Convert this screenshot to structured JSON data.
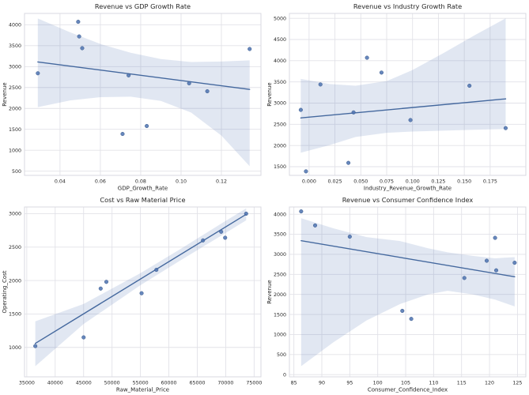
{
  "style": {
    "point_color": "#4c72b0",
    "point_edge_color": "#3a5a8c",
    "line_color": "#44689e",
    "band_color": "#4c72b0",
    "band_opacity": 0.17,
    "grid_color": "#e2e2e8",
    "spine_color": "#d9d9e0",
    "text_color": "#262626",
    "background": "#ffffff"
  },
  "chart_data": [
    {
      "id": "revenue-vs-gdp-growth",
      "type": "scatter",
      "title": "Revenue vs GDP Growth Rate",
      "xlabel": "GDP_Growth_Rate",
      "ylabel": "Revenue",
      "xlim": [
        0.0224,
        0.1396
      ],
      "ylim": [
        400,
        4270
      ],
      "xtick_values": [
        0.04,
        0.06,
        0.08,
        0.1,
        0.12
      ],
      "xtick_labels": [
        "0.04",
        "0.06",
        "0.08",
        "0.10",
        "0.12"
      ],
      "ytick_values": [
        500,
        1000,
        1500,
        2000,
        2500,
        3000,
        3500,
        4000
      ],
      "ytick_labels": [
        "500",
        "1000",
        "1500",
        "2000",
        "2500",
        "3000",
        "3500",
        "4000"
      ],
      "points": [
        [
          0.029,
          2840
        ],
        [
          0.049,
          4070
        ],
        [
          0.0495,
          3720
        ],
        [
          0.051,
          3440
        ],
        [
          0.071,
          1390
        ],
        [
          0.074,
          2790
        ],
        [
          0.083,
          1580
        ],
        [
          0.104,
          2600
        ],
        [
          0.113,
          2410
        ],
        [
          0.134,
          3420
        ]
      ],
      "regression_line": {
        "x": [
          0.029,
          0.134
        ],
        "y": [
          3110,
          2455
        ]
      },
      "confidence_band": {
        "x": [
          0.029,
          0.045,
          0.06,
          0.075,
          0.09,
          0.105,
          0.12,
          0.134
        ],
        "upper": [
          4150,
          3820,
          3540,
          3330,
          3180,
          3110,
          3120,
          3150
        ],
        "lower": [
          2030,
          2190,
          2270,
          2280,
          2180,
          1900,
          1350,
          620
        ]
      }
    },
    {
      "id": "revenue-vs-industry-growth",
      "type": "scatter",
      "title": "Revenue vs Industry Growth Rate",
      "xlabel": "Industry_Revenue_Growth_Rate",
      "ylabel": "Revenue",
      "xlim": [
        -0.019,
        0.2095
      ],
      "ylim": [
        1295,
        5115
      ],
      "xtick_values": [
        0.0,
        0.025,
        0.05,
        0.075,
        0.1,
        0.125,
        0.15,
        0.175
      ],
      "xtick_labels": [
        "0.000",
        "0.025",
        "0.050",
        "0.075",
        "0.100",
        "0.125",
        "0.150",
        "0.175"
      ],
      "ytick_values": [
        1500,
        2000,
        2500,
        3000,
        3500,
        4000,
        4500,
        5000
      ],
      "ytick_labels": [
        "1500",
        "2000",
        "2500",
        "3000",
        "3500",
        "4000",
        "4500",
        "5000"
      ],
      "points": [
        [
          -0.008,
          2840
        ],
        [
          -0.003,
          1390
        ],
        [
          0.011,
          3440
        ],
        [
          0.038,
          1590
        ],
        [
          0.043,
          2780
        ],
        [
          0.056,
          4070
        ],
        [
          0.07,
          3720
        ],
        [
          0.098,
          2600
        ],
        [
          0.155,
          3410
        ],
        [
          0.19,
          2410
        ]
      ],
      "regression_line": {
        "x": [
          -0.008,
          0.19
        ],
        "y": [
          2650,
          3100
        ]
      },
      "confidence_band": {
        "x": [
          -0.008,
          0.02,
          0.045,
          0.075,
          0.1,
          0.13,
          0.16,
          0.19
        ],
        "upper": [
          3570,
          3450,
          3410,
          3520,
          3780,
          4180,
          4600,
          5000
        ],
        "lower": [
          1830,
          2010,
          2200,
          2300,
          2330,
          2350,
          2370,
          2390
        ]
      }
    },
    {
      "id": "cost-vs-raw-material-price",
      "type": "scatter",
      "title": "Cost vs Raw Material Price",
      "xlabel": "Raw_Material_Price",
      "ylabel": "Operating_Cost",
      "xlim": [
        34600,
        76200
      ],
      "ylim": [
        560,
        3100
      ],
      "xtick_values": [
        35000,
        40000,
        45000,
        50000,
        55000,
        60000,
        65000,
        70000,
        75000
      ],
      "xtick_labels": [
        "35000",
        "40000",
        "45000",
        "50000",
        "55000",
        "60000",
        "65000",
        "70000",
        "75000"
      ],
      "ytick_values": [
        1000,
        1500,
        2000,
        2500,
        3000
      ],
      "ytick_labels": [
        "1000",
        "1500",
        "2000",
        "2500",
        "3000"
      ],
      "points": [
        [
          36500,
          1020
        ],
        [
          45000,
          1150
        ],
        [
          48000,
          1880
        ],
        [
          49000,
          1980
        ],
        [
          55200,
          1810
        ],
        [
          57800,
          2160
        ],
        [
          66000,
          2600
        ],
        [
          69200,
          2730
        ],
        [
          69900,
          2640
        ],
        [
          73600,
          3000
        ]
      ],
      "regression_line": {
        "x": [
          36500,
          73600
        ],
        "y": [
          1060,
          2990
        ]
      },
      "confidence_band": {
        "x": [
          36500,
          45000,
          55000,
          62000,
          69000,
          73600
        ],
        "upper": [
          1390,
          1650,
          2110,
          2470,
          2840,
          3080
        ],
        "lower": [
          720,
          1350,
          1930,
          2300,
          2660,
          2900
        ]
      }
    },
    {
      "id": "revenue-vs-consumer-confidence",
      "type": "scatter",
      "title": "Revenue vs Consumer Confidence Index",
      "xlabel": "Consumer_Confidence_Index",
      "ylabel": "Revenue",
      "xlim": [
        84.2,
        126.5
      ],
      "ylim": [
        -55,
        4180
      ],
      "xtick_values": [
        85,
        90,
        95,
        100,
        105,
        110,
        115,
        120,
        125
      ],
      "xtick_labels": [
        "85",
        "90",
        "95",
        "100",
        "105",
        "110",
        "115",
        "120",
        "125"
      ],
      "ytick_values": [
        0,
        500,
        1000,
        1500,
        2000,
        2500,
        3000,
        3500,
        4000
      ],
      "ytick_labels": [
        "0",
        "500",
        "1000",
        "1500",
        "2000",
        "2500",
        "3000",
        "3500",
        "4000"
      ],
      "points": [
        [
          86.3,
          4070
        ],
        [
          88.8,
          3720
        ],
        [
          95.0,
          3440
        ],
        [
          104.4,
          1590
        ],
        [
          106.0,
          1390
        ],
        [
          115.5,
          2410
        ],
        [
          119.5,
          2840
        ],
        [
          121.0,
          3410
        ],
        [
          121.2,
          2600
        ],
        [
          124.5,
          2790
        ]
      ],
      "regression_line": {
        "x": [
          86.3,
          124.5
        ],
        "y": [
          3340,
          2440
        ]
      },
      "confidence_band": {
        "x": [
          86.3,
          92,
          98,
          104,
          109,
          112.5,
          117,
          121,
          124.5
        ],
        "upper": [
          3900,
          3650,
          3430,
          3330,
          3150,
          3050,
          2960,
          2900,
          2930
        ],
        "lower": [
          210,
          800,
          1350,
          1760,
          2000,
          2090,
          2000,
          1870,
          1700
        ]
      }
    }
  ]
}
